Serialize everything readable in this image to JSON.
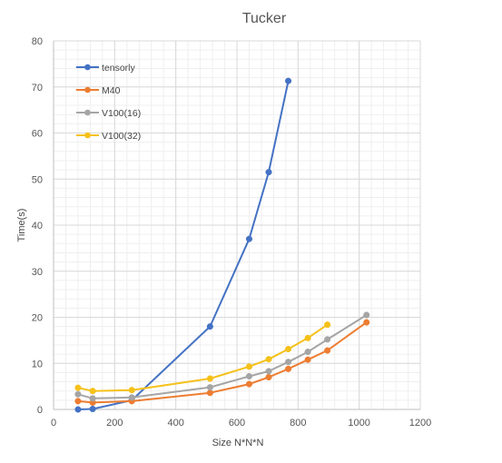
{
  "chart_data": {
    "type": "line",
    "title": "Tucker",
    "xlabel": "Size N*N*N",
    "ylabel": "Time(s)",
    "xlim": [
      0,
      1200
    ],
    "ylim": [
      0,
      80
    ],
    "x_ticks": [
      0,
      200,
      400,
      600,
      800,
      1000,
      1200
    ],
    "y_ticks": [
      0,
      10,
      20,
      30,
      40,
      50,
      60,
      70,
      80
    ],
    "grid": true,
    "legend_position": "top-left",
    "series": [
      {
        "name": "tensorly",
        "color": "#4472C4",
        "x": [
          80,
          128,
          256,
          512,
          640,
          704,
          768
        ],
        "y": [
          0.0,
          0.1,
          2.0,
          18.0,
          37.0,
          51.5,
          71.3
        ]
      },
      {
        "name": "M40",
        "color": "#ED7D31",
        "x": [
          80,
          128,
          256,
          512,
          640,
          704,
          768,
          832,
          896,
          1024
        ],
        "y": [
          1.8,
          1.5,
          1.8,
          3.6,
          5.5,
          7.0,
          8.8,
          10.8,
          12.8,
          18.9
        ]
      },
      {
        "name": "V100(16)",
        "color": "#A5A5A5",
        "x": [
          80,
          128,
          256,
          512,
          640,
          704,
          768,
          832,
          896,
          1024
        ],
        "y": [
          3.3,
          2.4,
          2.6,
          4.8,
          7.2,
          8.3,
          10.3,
          12.5,
          15.2,
          20.5
        ]
      },
      {
        "name": "V100(32)",
        "color": "#F5C11A",
        "x": [
          80,
          128,
          256,
          512,
          640,
          704,
          768,
          832,
          896
        ],
        "y": [
          4.7,
          4.0,
          4.2,
          6.7,
          9.3,
          10.9,
          13.1,
          15.5,
          18.4
        ]
      }
    ]
  }
}
